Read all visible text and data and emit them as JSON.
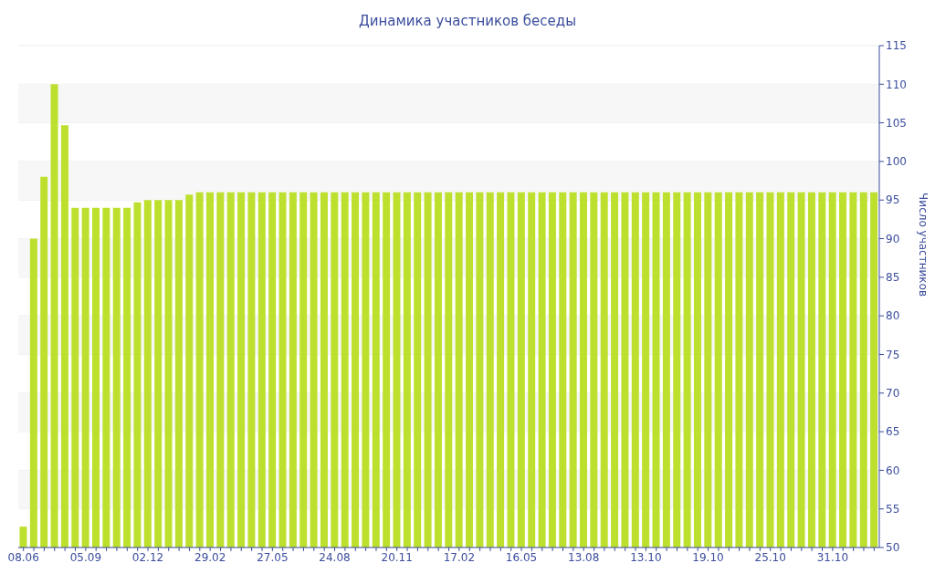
{
  "chart_data": {
    "type": "bar",
    "title": "Динамика участников беседы",
    "ylabel": "Число участников",
    "categories": [
      "08.06",
      null,
      null,
      null,
      null,
      null,
      "05.09",
      null,
      null,
      null,
      null,
      null,
      "02.12",
      null,
      null,
      null,
      null,
      null,
      "29.02",
      null,
      null,
      null,
      null,
      null,
      "27.05",
      null,
      null,
      null,
      null,
      null,
      "24.08",
      null,
      null,
      null,
      null,
      null,
      "20.11",
      null,
      null,
      null,
      null,
      null,
      "17.02",
      null,
      null,
      null,
      null,
      null,
      "16.05",
      null,
      null,
      null,
      null,
      null,
      "13.08",
      null,
      null,
      null,
      null,
      null,
      "13.10",
      null,
      null,
      null,
      null,
      null,
      "19.10",
      null,
      null,
      null,
      null,
      null,
      "25.10",
      null,
      null,
      null,
      null,
      null,
      "31.10",
      null,
      null,
      null,
      null
    ],
    "values": [
      52.7,
      90,
      98,
      110,
      104.7,
      94,
      94,
      94,
      94,
      94,
      94,
      94.7,
      95,
      95,
      95,
      95,
      95.7,
      96,
      96,
      96,
      96,
      96,
      96,
      96,
      96,
      96,
      96,
      96,
      96,
      96,
      96,
      96,
      96,
      96,
      96,
      96,
      96,
      96,
      96,
      96,
      96,
      96,
      96,
      96,
      96,
      96,
      96,
      96,
      96,
      96,
      96,
      96,
      96,
      96,
      96,
      96,
      96,
      96,
      96,
      96,
      96,
      96,
      96,
      96,
      96,
      96,
      96,
      96,
      96,
      96,
      96,
      96,
      96,
      96,
      96,
      96,
      96,
      96,
      96,
      96,
      96,
      96,
      96
    ],
    "color": "#bde02e",
    "ylim": [
      50,
      115
    ],
    "yticks": [
      50,
      55,
      60,
      65,
      70,
      75,
      80,
      85,
      90,
      95,
      100,
      105,
      110,
      115
    ],
    "grid": "y"
  }
}
